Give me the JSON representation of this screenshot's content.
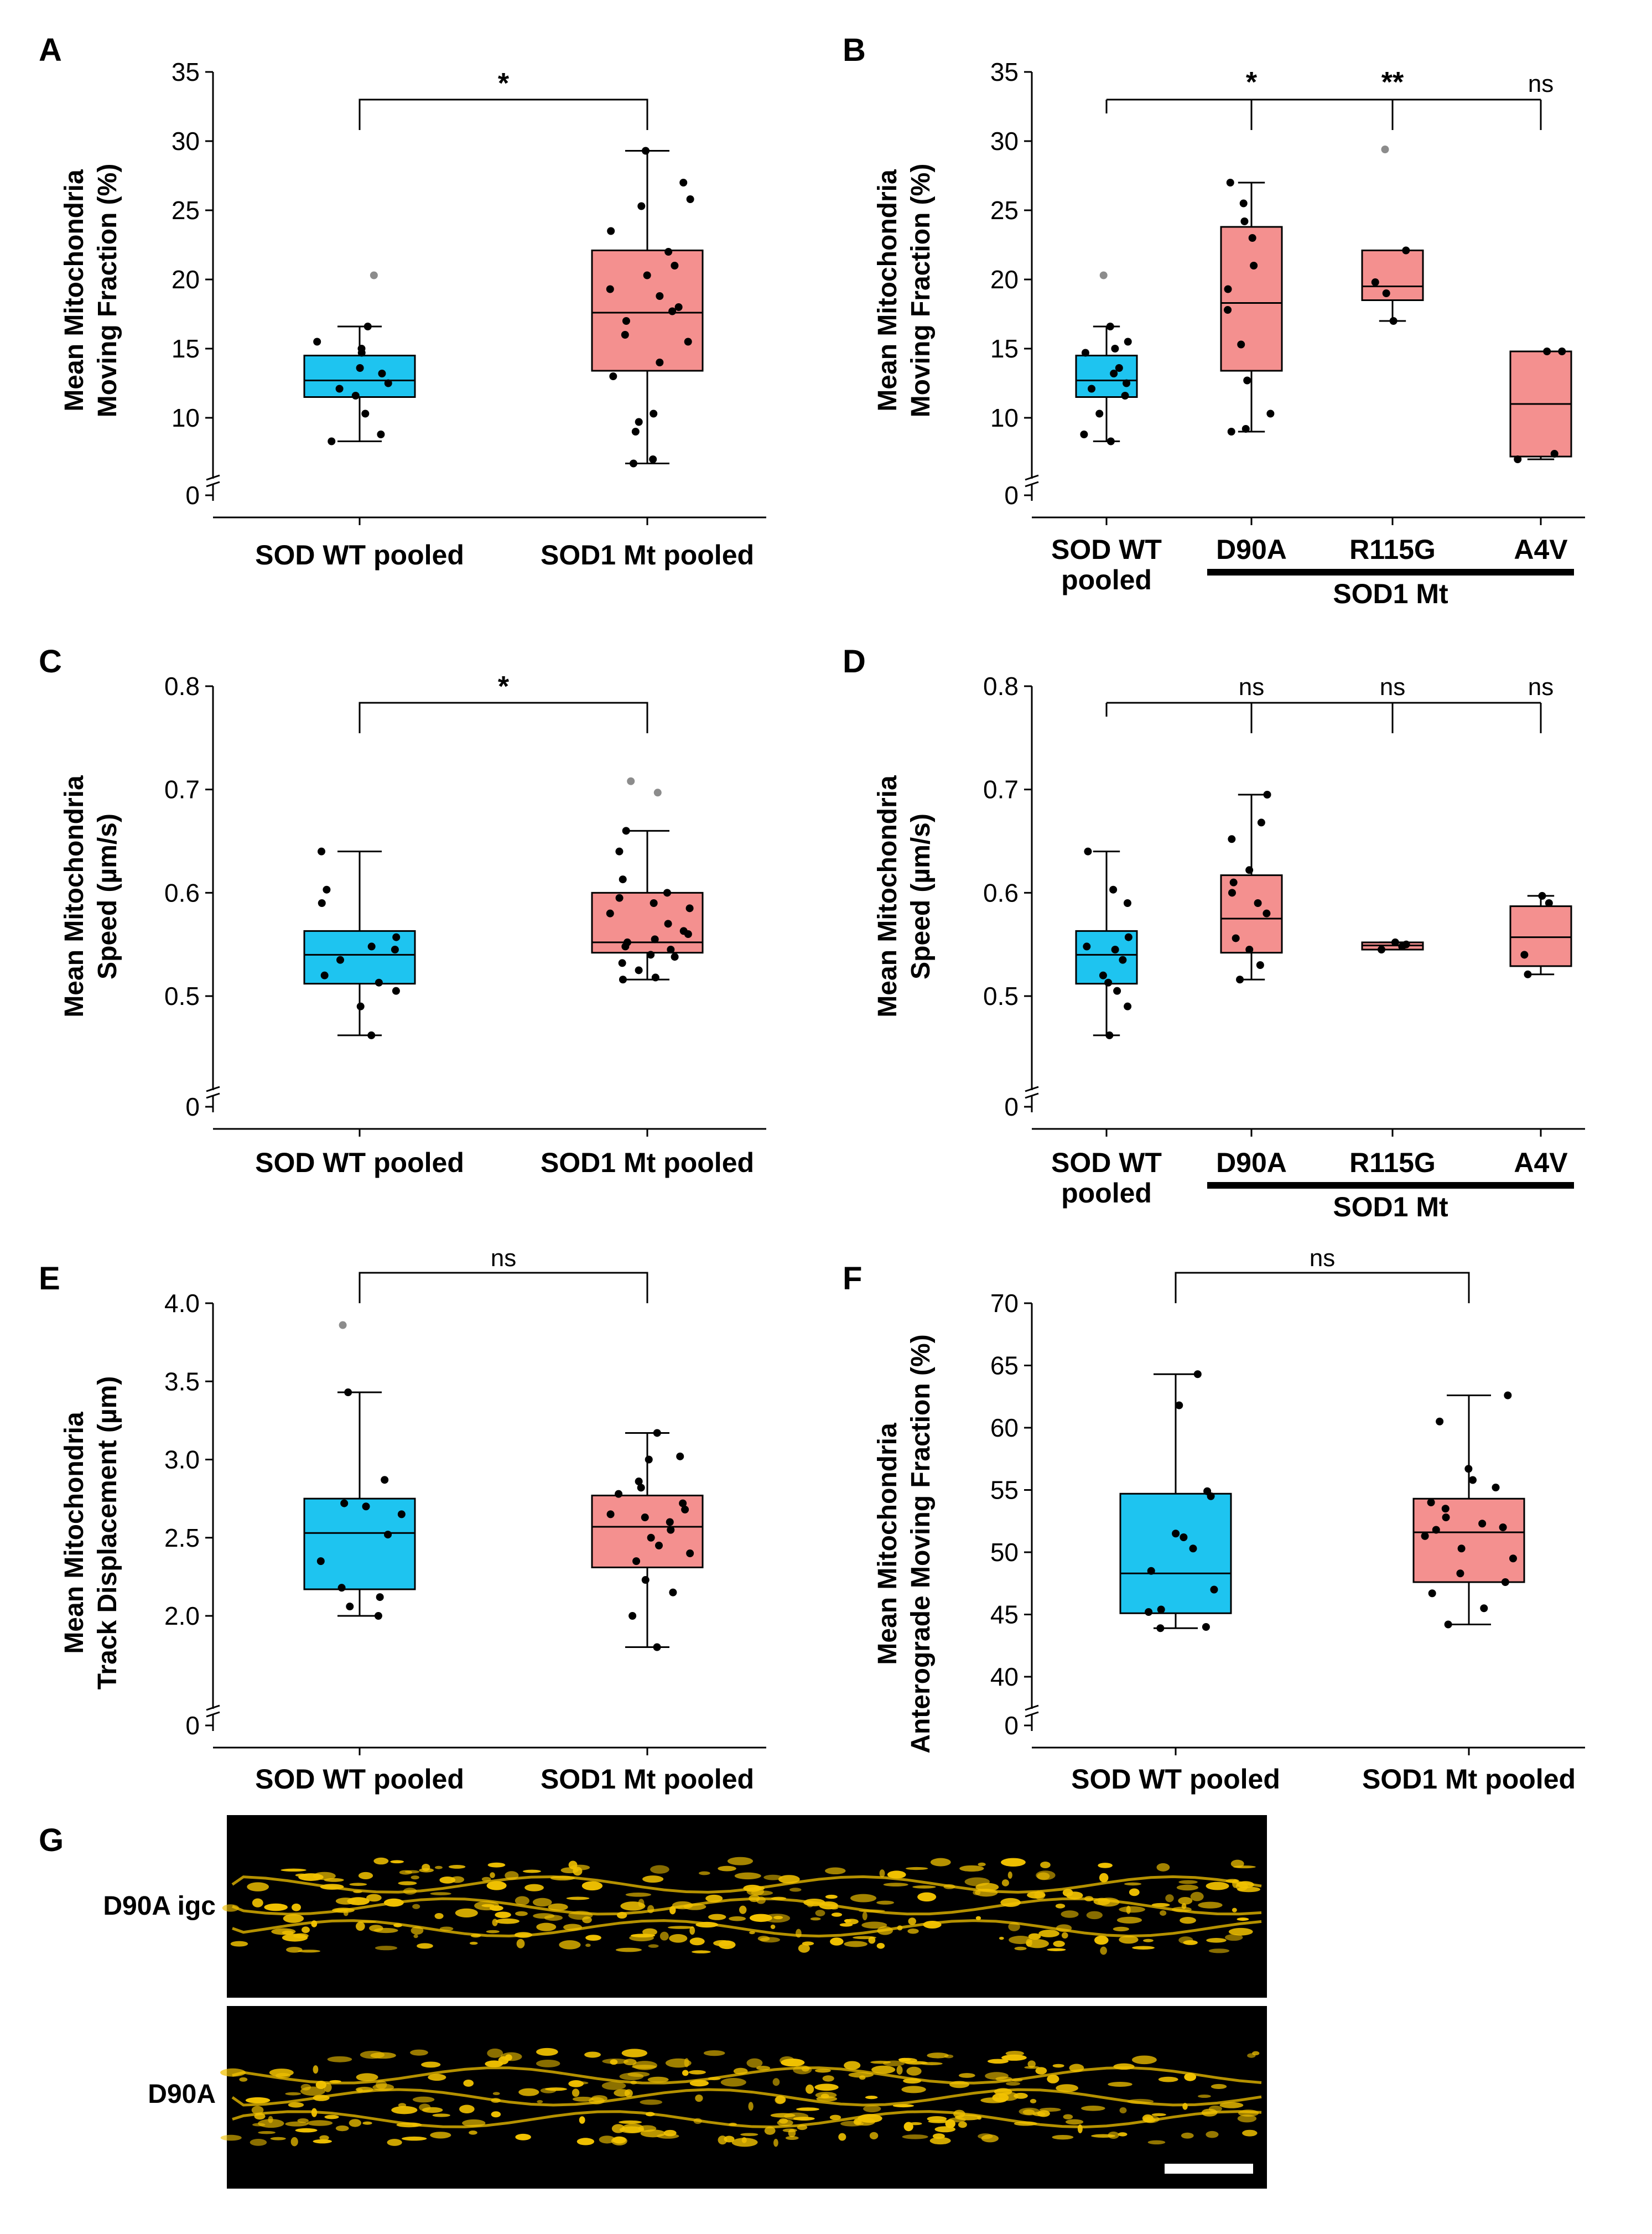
{
  "figure_g": {
    "panel_label": "G",
    "rows": [
      "D90A igc",
      "D90A"
    ]
  },
  "colors": {
    "wt": "#1ec4f0",
    "mt": "#f4908f",
    "outlier": "#8c8c8c",
    "micro_bg": "#000000",
    "micro_fg": "#f2c200"
  },
  "chart_data": [
    {
      "panel": "A",
      "type": "box",
      "ylabel": [
        "Mean Mitochondria",
        "Moving Fraction (%)"
      ],
      "ylim": [
        0,
        35
      ],
      "yticks": [
        10,
        15,
        20,
        25,
        30,
        35
      ],
      "zero_tick": "0",
      "categories": [
        "SOD WT pooled",
        "SOD1 Mt pooled"
      ],
      "groups": [
        {
          "color": "wt",
          "q1": 11.5,
          "median": 12.7,
          "q3": 14.5,
          "whisker_low": 8.3,
          "whisker_high": 16.6,
          "outliers": [
            20.3
          ],
          "points": [
            8.3,
            8.8,
            10.3,
            11.6,
            12.1,
            12.5,
            13.2,
            13.6,
            14.7,
            15.0,
            15.5,
            16.6
          ]
        },
        {
          "color": "mt",
          "q1": 13.4,
          "median": 17.6,
          "q3": 22.1,
          "whisker_low": 6.7,
          "whisker_high": 29.3,
          "outliers": [],
          "points": [
            6.7,
            7.0,
            9.0,
            9.7,
            10.3,
            13.0,
            14.0,
            15.5,
            16.0,
            17.0,
            17.7,
            18.0,
            18.8,
            19.3,
            20.3,
            21.0,
            22.0,
            23.5,
            25.3,
            25.8,
            27.0,
            29.3
          ]
        }
      ],
      "comparisons": [
        {
          "from": 0,
          "to": 1,
          "label": "*"
        }
      ]
    },
    {
      "panel": "B",
      "type": "box",
      "ylabel": [
        "Mean Mitochondria",
        "Moving Fraction (%)"
      ],
      "ylim": [
        0,
        35
      ],
      "yticks": [
        10,
        15,
        20,
        25,
        30,
        35
      ],
      "zero_tick": "0",
      "categories": [
        [
          "SOD WT",
          "pooled"
        ],
        [
          "D90A"
        ],
        [
          "R115G"
        ],
        [
          "A4V"
        ]
      ],
      "group_bar": {
        "label": "SOD1 Mt",
        "from": 1,
        "to": 3
      },
      "groups": [
        {
          "color": "wt",
          "q1": 11.5,
          "median": 12.7,
          "q3": 14.5,
          "whisker_low": 8.3,
          "whisker_high": 16.6,
          "outliers": [
            20.3
          ],
          "points": [
            8.3,
            8.8,
            10.3,
            11.6,
            12.1,
            12.5,
            13.2,
            13.6,
            14.7,
            15.0,
            15.5,
            16.6
          ]
        },
        {
          "color": "mt",
          "q1": 13.4,
          "median": 18.3,
          "q3": 23.8,
          "whisker_low": 9.0,
          "whisker_high": 27.0,
          "outliers": [],
          "points": [
            9.0,
            9.2,
            10.3,
            12.7,
            15.3,
            17.8,
            19.3,
            21.0,
            23.0,
            24.2,
            25.5,
            27.0
          ]
        },
        {
          "color": "mt",
          "q1": 18.5,
          "median": 19.5,
          "q3": 22.1,
          "whisker_low": 17.0,
          "whisker_high": 22.1,
          "outliers": [
            29.4
          ],
          "points": [
            17.0,
            19.0,
            19.8,
            22.1
          ]
        },
        {
          "color": "mt",
          "q1": 7.2,
          "median": 11.0,
          "q3": 14.8,
          "whisker_low": 7.0,
          "whisker_high": 14.8,
          "outliers": [],
          "points": [
            7.0,
            7.4,
            14.8,
            14.8
          ]
        }
      ],
      "comparisons": [
        {
          "from": 0,
          "to": 1,
          "label": "*"
        },
        {
          "from": 0,
          "to": 2,
          "label": "**"
        },
        {
          "from": 0,
          "to": 3,
          "label": "ns"
        }
      ]
    },
    {
      "panel": "C",
      "type": "box",
      "ylabel": [
        "Mean Mitochondria",
        "Speed (µm/s)"
      ],
      "ylim": [
        0.4,
        0.8
      ],
      "yticks": [
        0.5,
        0.6,
        0.7,
        0.8
      ],
      "ytick_labels": [
        "0.5",
        "0.6",
        "0.7",
        "0.8"
      ],
      "zero_tick": "0",
      "categories": [
        "SOD WT pooled",
        "SOD1 Mt pooled"
      ],
      "groups": [
        {
          "color": "wt",
          "q1": 0.512,
          "median": 0.54,
          "q3": 0.563,
          "whisker_low": 0.462,
          "whisker_high": 0.64,
          "outliers": [],
          "points": [
            0.462,
            0.49,
            0.505,
            0.513,
            0.52,
            0.535,
            0.545,
            0.548,
            0.557,
            0.59,
            0.603,
            0.64
          ]
        },
        {
          "color": "mt",
          "q1": 0.542,
          "median": 0.552,
          "q3": 0.6,
          "whisker_low": 0.516,
          "whisker_high": 0.66,
          "outliers": [
            0.697,
            0.708
          ],
          "points": [
            0.516,
            0.518,
            0.525,
            0.532,
            0.538,
            0.54,
            0.545,
            0.548,
            0.552,
            0.555,
            0.56,
            0.563,
            0.57,
            0.58,
            0.585,
            0.59,
            0.595,
            0.6,
            0.613,
            0.64,
            0.66
          ]
        }
      ],
      "comparisons": [
        {
          "from": 0,
          "to": 1,
          "label": "*"
        }
      ]
    },
    {
      "panel": "D",
      "type": "box",
      "ylabel": [
        "Mean Mitochondria",
        "Speed (µm/s)"
      ],
      "ylim": [
        0.4,
        0.8
      ],
      "yticks": [
        0.5,
        0.6,
        0.7,
        0.8
      ],
      "ytick_labels": [
        "0.5",
        "0.6",
        "0.7",
        "0.8"
      ],
      "zero_tick": "0",
      "categories": [
        [
          "SOD WT",
          "pooled"
        ],
        [
          "D90A"
        ],
        [
          "R115G"
        ],
        [
          "A4V"
        ]
      ],
      "group_bar": {
        "label": "SOD1 Mt",
        "from": 1,
        "to": 3
      },
      "groups": [
        {
          "color": "wt",
          "q1": 0.512,
          "median": 0.54,
          "q3": 0.563,
          "whisker_low": 0.462,
          "whisker_high": 0.64,
          "outliers": [],
          "points": [
            0.462,
            0.49,
            0.505,
            0.513,
            0.52,
            0.535,
            0.545,
            0.548,
            0.557,
            0.59,
            0.603,
            0.64
          ]
        },
        {
          "color": "mt",
          "q1": 0.542,
          "median": 0.575,
          "q3": 0.617,
          "whisker_low": 0.516,
          "whisker_high": 0.695,
          "outliers": [],
          "points": [
            0.516,
            0.53,
            0.545,
            0.556,
            0.58,
            0.59,
            0.6,
            0.61,
            0.622,
            0.652,
            0.668,
            0.695
          ]
        },
        {
          "color": "mt",
          "q1": 0.545,
          "median": 0.549,
          "q3": 0.552,
          "whisker_low": 0.545,
          "whisker_high": 0.552,
          "outliers": [],
          "points": [
            0.545,
            0.548,
            0.55,
            0.552
          ]
        },
        {
          "color": "mt",
          "q1": 0.529,
          "median": 0.557,
          "q3": 0.587,
          "whisker_low": 0.521,
          "whisker_high": 0.597,
          "outliers": [],
          "points": [
            0.521,
            0.54,
            0.59,
            0.597
          ]
        }
      ],
      "comparisons": [
        {
          "from": 0,
          "to": 1,
          "label": "ns"
        },
        {
          "from": 0,
          "to": 2,
          "label": "ns"
        },
        {
          "from": 0,
          "to": 3,
          "label": "ns"
        }
      ]
    },
    {
      "panel": "E",
      "type": "box",
      "ylabel": [
        "Mean Mitochondria",
        "Track Displacement (µm)"
      ],
      "ylim": [
        1.3,
        4.0
      ],
      "yticks": [
        2.0,
        2.5,
        3.0,
        3.5,
        4.0
      ],
      "ytick_labels": [
        "2.0",
        "2.5",
        "3.0",
        "3.5",
        "4.0"
      ],
      "zero_tick": "0",
      "categories": [
        "SOD WT pooled",
        "SOD1 Mt pooled"
      ],
      "groups": [
        {
          "color": "wt",
          "q1": 2.17,
          "median": 2.53,
          "q3": 2.75,
          "whisker_low": 2.0,
          "whisker_high": 3.43,
          "outliers": [
            3.86
          ],
          "points": [
            2.0,
            2.06,
            2.12,
            2.18,
            2.35,
            2.52,
            2.65,
            2.7,
            2.72,
            2.87,
            3.43
          ]
        },
        {
          "color": "mt",
          "q1": 2.31,
          "median": 2.57,
          "q3": 2.77,
          "whisker_low": 1.8,
          "whisker_high": 3.17,
          "outliers": [],
          "points": [
            1.8,
            2.0,
            2.15,
            2.23,
            2.35,
            2.4,
            2.45,
            2.5,
            2.55,
            2.6,
            2.63,
            2.65,
            2.68,
            2.72,
            2.78,
            2.82,
            2.86,
            3.0,
            3.02,
            3.17
          ]
        }
      ],
      "comparisons": [
        {
          "from": 0,
          "to": 1,
          "label": "ns"
        }
      ]
    },
    {
      "panel": "F",
      "type": "box",
      "ylabel": [
        "Mean Mitochondria",
        "Anterograde Moving Fraction (%)"
      ],
      "ylim": [
        38,
        70
      ],
      "yticks": [
        40,
        45,
        50,
        55,
        60,
        65,
        70
      ],
      "zero_tick": "0",
      "categories": [
        "SOD WT pooled",
        "SOD1 Mt pooled"
      ],
      "groups": [
        {
          "color": "wt",
          "q1": 45.1,
          "median": 48.3,
          "q3": 54.7,
          "whisker_low": 43.9,
          "whisker_high": 64.3,
          "outliers": [],
          "points": [
            43.9,
            44.0,
            45.2,
            45.4,
            47.0,
            48.5,
            50.3,
            51.2,
            51.5,
            54.5,
            54.9,
            61.8,
            64.3
          ]
        },
        {
          "color": "mt",
          "q1": 47.6,
          "median": 51.6,
          "q3": 54.3,
          "whisker_low": 44.2,
          "whisker_high": 62.6,
          "outliers": [],
          "points": [
            44.2,
            45.5,
            46.7,
            47.6,
            48.3,
            49.5,
            50.3,
            51.3,
            51.8,
            52.0,
            52.3,
            52.8,
            53.5,
            54.0,
            55.2,
            55.8,
            56.7,
            60.5,
            62.6
          ]
        }
      ],
      "comparisons": [
        {
          "from": 0,
          "to": 1,
          "label": "ns"
        }
      ]
    }
  ]
}
